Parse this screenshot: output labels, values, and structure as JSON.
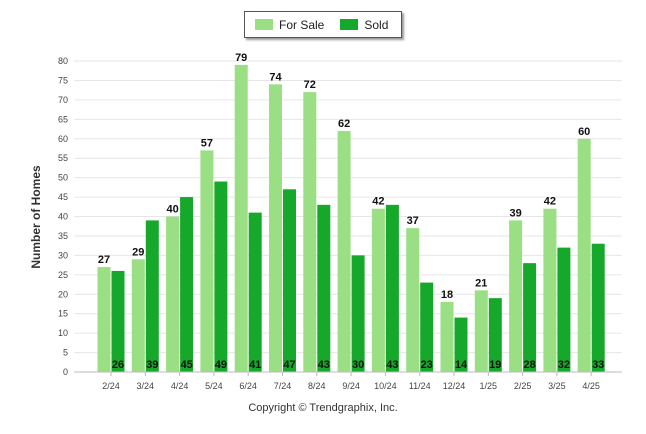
{
  "legend": [
    {
      "label": "For Sale",
      "color": "#9adf83"
    },
    {
      "label": "Sold",
      "color": "#16a82a"
    }
  ],
  "footer": "Copyright © Trendgraphix, Inc.",
  "chart_data": {
    "type": "bar",
    "ylabel": "Number of Homes",
    "xlabel": "",
    "ylim": [
      0,
      80
    ],
    "yticks": [
      0,
      5,
      10,
      15,
      20,
      25,
      30,
      35,
      40,
      45,
      50,
      55,
      60,
      65,
      70,
      75,
      80
    ],
    "grid": true,
    "legend_position": "top-center",
    "categories": [
      "2/24",
      "3/24",
      "4/24",
      "5/24",
      "6/24",
      "7/24",
      "8/24",
      "9/24",
      "10/24",
      "11/24",
      "12/24",
      "1/25",
      "2/25",
      "3/25",
      "4/25"
    ],
    "series": [
      {
        "name": "For Sale",
        "color": "#9adf83",
        "values": [
          27,
          29,
          40,
          57,
          79,
          74,
          72,
          62,
          42,
          37,
          18,
          21,
          39,
          42,
          60
        ]
      },
      {
        "name": "Sold",
        "color": "#16a82a",
        "values": [
          26,
          39,
          45,
          49,
          41,
          47,
          43,
          30,
          43,
          23,
          14,
          19,
          28,
          32,
          33
        ]
      }
    ]
  }
}
